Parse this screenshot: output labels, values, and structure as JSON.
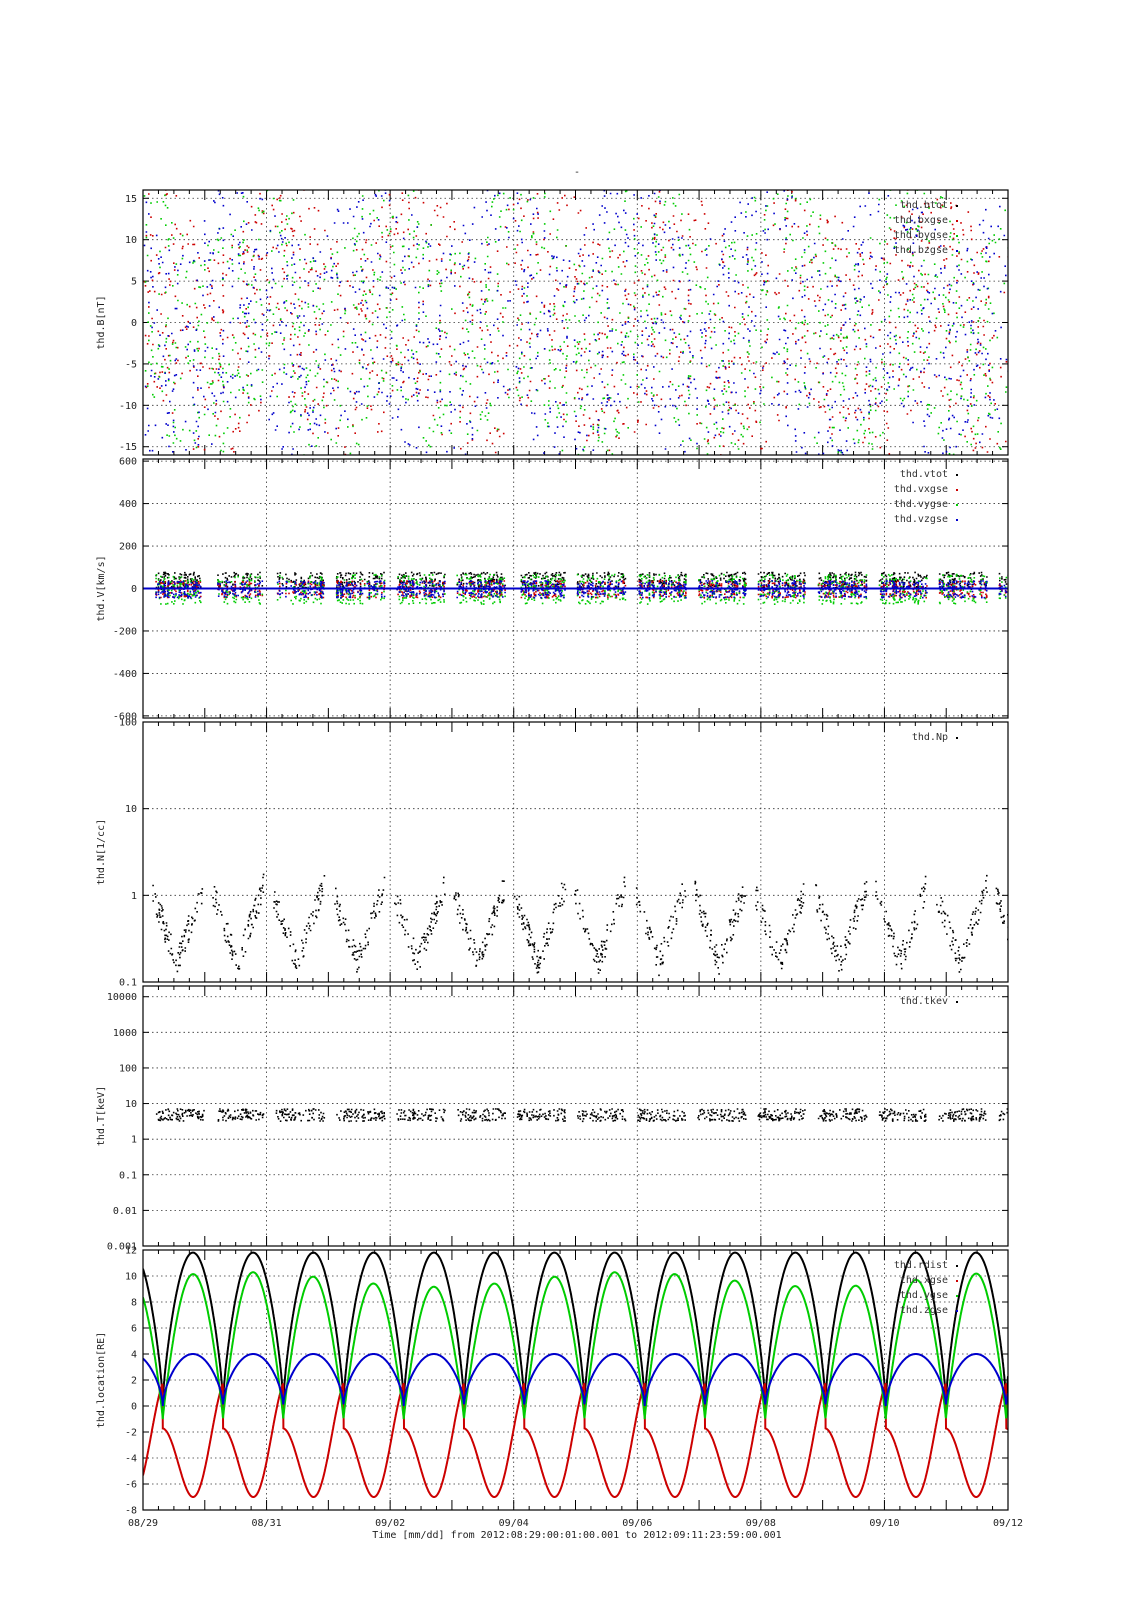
{
  "page_title": "-",
  "time_axis": {
    "labels": [
      "08/29",
      "08/31",
      "09/02",
      "09/04",
      "09/06",
      "09/08",
      "09/10",
      "09/12"
    ],
    "start_day": 0,
    "end_day": 14,
    "label_days": [
      0,
      2,
      4,
      6,
      8,
      10,
      12,
      14
    ],
    "caption": "Time [mm/dd]  from 2012:08:29:00:01:00.001  to  2012:09:11:23:59:00.001"
  },
  "chart_data": [
    {
      "type": "scatter",
      "ylabel": "thd.B[nT]",
      "ylim": [
        -16,
        16
      ],
      "yscale": "linear",
      "yticks": [
        -15,
        -10,
        -5,
        0,
        5,
        10,
        15
      ],
      "ytick_labels": [
        "-15",
        "-10",
        "-5",
        "0",
        "5",
        "10",
        "15"
      ],
      "legend_placement": "top-right",
      "series": [
        {
          "name": "thd.btot",
          "color": "#000000"
        },
        {
          "name": "thd.bxgse",
          "color": "#cc0000"
        },
        {
          "name": "thd.bygse",
          "color": "#00cc00"
        },
        {
          "name": "thd.bzgse",
          "color": "#0000cc"
        }
      ]
    },
    {
      "type": "scatter",
      "ylabel": "thd.V[km/s]",
      "ylim": [
        -610,
        610
      ],
      "yscale": "linear",
      "yticks": [
        -600,
        -400,
        -200,
        0,
        200,
        400,
        600
      ],
      "ytick_labels": [
        "-600",
        "-400",
        "-200",
        "0",
        "200",
        "400",
        "600"
      ],
      "legend_placement": "top-right",
      "series": [
        {
          "name": "thd.vtot",
          "color": "#000000"
        },
        {
          "name": "thd.vxgse",
          "color": "#cc0000"
        },
        {
          "name": "thd.vygse",
          "color": "#00cc00"
        },
        {
          "name": "thd.vzgse",
          "color": "#0000cc"
        }
      ]
    },
    {
      "type": "scatter",
      "ylabel": "thd.N[1/cc]",
      "ylim": [
        0.1,
        100
      ],
      "yscale": "log",
      "yticks": [
        0.1,
        1,
        10,
        100
      ],
      "ytick_labels": [
        "0.1",
        "1",
        "10",
        "100"
      ],
      "legend_placement": "top-right",
      "series": [
        {
          "name": "thd.Np",
          "color": "#000000"
        }
      ]
    },
    {
      "type": "scatter",
      "ylabel": "thd.T[keV]",
      "ylim": [
        0.001,
        20000
      ],
      "yscale": "log",
      "yticks": [
        0.001,
        0.01,
        0.1,
        1,
        10,
        100,
        1000,
        10000
      ],
      "ytick_labels": [
        "0.001",
        "0.01",
        "0.1",
        "1",
        "10",
        "100",
        "1000",
        "10000"
      ],
      "legend_placement": "top-right",
      "series": [
        {
          "name": "thd.tkev",
          "color": "#000000"
        }
      ]
    },
    {
      "type": "line",
      "ylabel": "thd.location[RE]",
      "ylim": [
        -8,
        12
      ],
      "yscale": "linear",
      "yticks": [
        -8,
        -6,
        -4,
        -2,
        0,
        2,
        4,
        6,
        8,
        10,
        12
      ],
      "ytick_labels": [
        "-8",
        "-6",
        "-4",
        "-2",
        "0",
        "2",
        "4",
        "6",
        "8",
        "10",
        "12"
      ],
      "legend_placement": "top-right",
      "orbit_period_days": 0.975,
      "series": [
        {
          "name": "thd.rdist",
          "color": "#000000",
          "max": 11.8,
          "min": 0.3
        },
        {
          "name": "thd.xgse",
          "color": "#cc0000",
          "max": 2.0,
          "min": -7.0
        },
        {
          "name": "thd.ygse",
          "color": "#00cc00",
          "max": 10.3,
          "min": -1.0
        },
        {
          "name": "thd.zgse",
          "color": "#0000cc",
          "max": 4.0,
          "min": 0.0
        }
      ]
    }
  ]
}
